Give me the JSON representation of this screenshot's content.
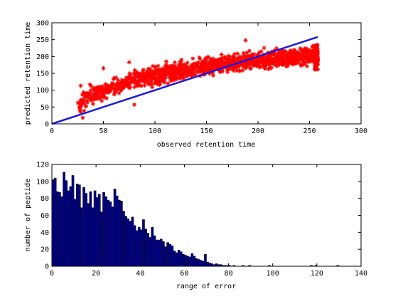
{
  "chart_data": [
    {
      "type": "scatter",
      "title": "",
      "xlabel": "observed retention time",
      "ylabel": "predicted retention time",
      "xlim": [
        0,
        300
      ],
      "ylim": [
        0,
        300
      ],
      "xticks": [
        "0",
        "50",
        "100",
        "150",
        "200",
        "250",
        "300"
      ],
      "yticks": [
        "0",
        "50",
        "100",
        "150",
        "200",
        "250",
        "300"
      ],
      "grid": false,
      "legend": "none",
      "marker": "*",
      "marker_color": "#ff0000",
      "point_cloud_trend": {
        "x": [
          25,
          40,
          60,
          80,
          100,
          120,
          140,
          160,
          180,
          200,
          220,
          240,
          258
        ],
        "y": [
          55,
          85,
          110,
          128,
          143,
          155,
          165,
          174,
          183,
          190,
          196,
          200,
          205
        ]
      },
      "point_spread": 22,
      "fit_line": {
        "x": [
          0,
          258
        ],
        "y": [
          0,
          258
        ],
        "color": "#1a1adc"
      },
      "notable_points": [
        {
          "x": 28,
          "y": 113
        },
        {
          "x": 37,
          "y": 117
        },
        {
          "x": 75,
          "y": 183
        },
        {
          "x": 50,
          "y": 165
        },
        {
          "x": 188,
          "y": 248
        },
        {
          "x": 30,
          "y": 18
        },
        {
          "x": 80,
          "y": 57
        }
      ]
    },
    {
      "type": "bar",
      "title": "",
      "xlabel": "range of error",
      "ylabel": "number of peptide",
      "xlim": [
        0,
        140
      ],
      "ylim": [
        0,
        120
      ],
      "xticks": [
        "0",
        "20",
        "40",
        "60",
        "80",
        "100",
        "120",
        "140"
      ],
      "yticks": [
        "0",
        "20",
        "40",
        "60",
        "80",
        "100",
        "120"
      ],
      "bar_color": "#00008b",
      "bin_start": 0,
      "bin_width": 1,
      "values": [
        102,
        104,
        88,
        87,
        82,
        111,
        101,
        89,
        94,
        107,
        79,
        97,
        96,
        69,
        93,
        86,
        74,
        88,
        69,
        89,
        81,
        85,
        64,
        87,
        82,
        78,
        76,
        70,
        91,
        83,
        78,
        77,
        65,
        59,
        56,
        53,
        58,
        48,
        42,
        46,
        43,
        55,
        44,
        39,
        34,
        46,
        36,
        31,
        31,
        32,
        29,
        23,
        28,
        26,
        24,
        18,
        16,
        19,
        17,
        14,
        13,
        12,
        11,
        15,
        12,
        9,
        8,
        7,
        6,
        14,
        5,
        4,
        3,
        2,
        3,
        2,
        2,
        1,
        1,
        1,
        1,
        0,
        1,
        0,
        0,
        0,
        1,
        0,
        0,
        1,
        0,
        0,
        0,
        0,
        0,
        0,
        0,
        0,
        1,
        0,
        0,
        0,
        0,
        0,
        0,
        0,
        0,
        0,
        0,
        0,
        0,
        0,
        0,
        0,
        0,
        0,
        0,
        1,
        0,
        1,
        0,
        0,
        0,
        0,
        0,
        0,
        0,
        0,
        0,
        1,
        0,
        0,
        0,
        0,
        0,
        0,
        0,
        0,
        0,
        0
      ]
    }
  ]
}
